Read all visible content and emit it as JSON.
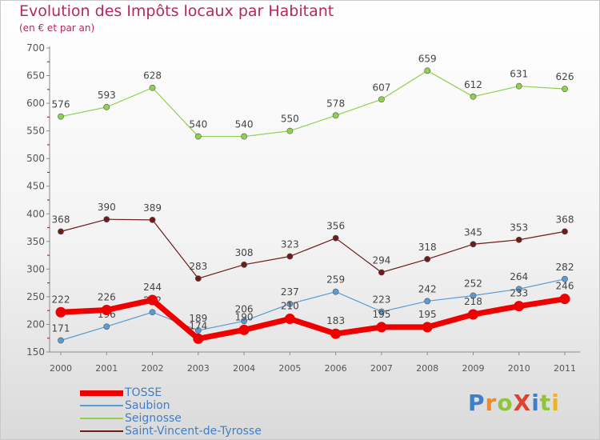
{
  "title": "Evolution des Impôts locaux par Habitant",
  "subtitle": "(en € et par an)",
  "logo_text": "ProXiti",
  "colors": {
    "title": "#b4285f",
    "axis": "#8a8a8a",
    "tick_mark": "#cc0000",
    "label": "#555555",
    "legend_text": "#3f7fc8"
  },
  "chart_data": {
    "type": "line",
    "title": "Evolution des Impôts locaux par Habitant",
    "subtitle": "(en € et par an)",
    "x": [
      "2000",
      "2001",
      "2002",
      "2003",
      "2004",
      "2005",
      "2006",
      "2007",
      "2008",
      "2009",
      "2010",
      "2011"
    ],
    "ylim": [
      150,
      700
    ],
    "yticks": [
      150,
      200,
      250,
      300,
      350,
      400,
      450,
      500,
      550,
      600,
      650,
      700
    ],
    "grid": false,
    "legend_position": "bottom-left",
    "series": [
      {
        "name": "TOSSE",
        "color": "#ee0000",
        "values": [
          222,
          226,
          244,
          174,
          190,
          210,
          183,
          195,
          195,
          218,
          233,
          246
        ]
      },
      {
        "name": "Saubion",
        "color": "#5b9bd5",
        "values": [
          171,
          196,
          222,
          189,
          206,
          237,
          259,
          223,
          242,
          252,
          264,
          282
        ]
      },
      {
        "name": "Seignosse",
        "color": "#8fd14f",
        "values": [
          576,
          593,
          628,
          540,
          540,
          550,
          578,
          607,
          659,
          612,
          631,
          626
        ]
      },
      {
        "name": "Saint-Vincent-de-Tyrosse",
        "color": "#6e1b1b",
        "values": [
          368,
          390,
          389,
          283,
          308,
          323,
          356,
          294,
          318,
          345,
          353,
          368
        ]
      }
    ]
  }
}
